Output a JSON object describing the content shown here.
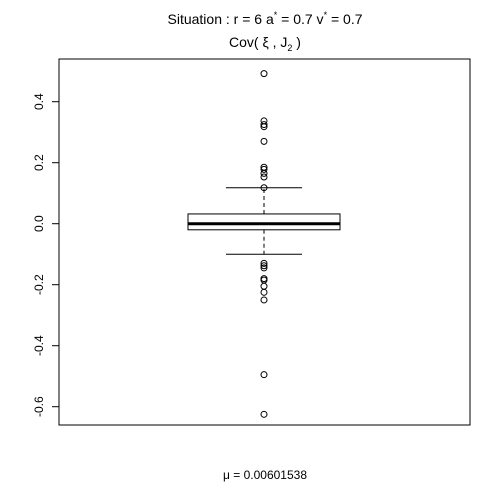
{
  "chart_data": {
    "type": "boxplot",
    "title_prefix": "Situation :  r = 6 a",
    "title_a_sup": "*",
    "title_mid": " = 0.7 v",
    "title_v_sup": "*",
    "title_suffix": " = 0.7",
    "subtitle_prefix": "Cov( ",
    "subtitle_xi": "ξ",
    "subtitle_mid": " , J",
    "subtitle_sub": "2",
    "subtitle_suffix": " )",
    "footer_mu": "μ",
    "footer_value": " = 0.00601538",
    "ylim": [
      -0.66,
      0.54
    ],
    "yticks": [
      -0.6,
      -0.4,
      -0.2,
      0.0,
      0.2,
      0.4
    ],
    "ytick_labels": [
      "-0.6",
      "-0.4",
      "-0.2",
      "0.0",
      "0.2",
      "0.4"
    ],
    "box": {
      "whisker_low": -0.1,
      "q1": -0.02,
      "median": 0.0,
      "q3": 0.032,
      "whisker_high": 0.118
    },
    "outliers": [
      0.492,
      0.337,
      0.325,
      0.318,
      0.27,
      0.185,
      0.178,
      0.165,
      0.153,
      0.118,
      -0.13,
      -0.138,
      -0.145,
      -0.18,
      -0.185,
      -0.205,
      -0.225,
      -0.25,
      -0.495,
      -0.625
    ],
    "grid": false,
    "orientation": "vertical"
  }
}
